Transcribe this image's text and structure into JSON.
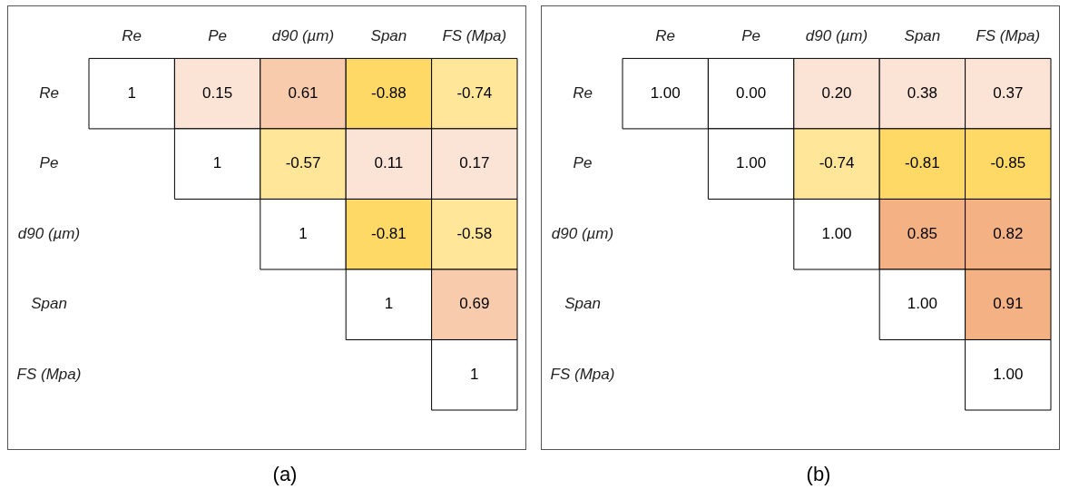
{
  "chart_data": [
    {
      "type": "heatmap",
      "title": "(a)",
      "categories": [
        "Re",
        "Pe",
        "d90 (µm)",
        "Span",
        "FS (Mpa)"
      ],
      "y_categories": [
        "Re",
        "Pe",
        "d90 (µm)",
        "Span",
        "FS (Mpa)"
      ],
      "cells": [
        [
          1,
          0.15,
          0.61,
          -0.88,
          -0.74
        ],
        [
          null,
          1,
          -0.57,
          0.11,
          0.17
        ],
        [
          null,
          null,
          1,
          -0.81,
          -0.58
        ],
        [
          null,
          null,
          null,
          1,
          0.69
        ],
        [
          null,
          null,
          null,
          null,
          1
        ]
      ],
      "cell_labels": [
        [
          "1",
          "0.15",
          "0.61",
          "-0.88",
          "-0.74"
        ],
        [
          null,
          "1",
          "-0.57",
          "0.11",
          "0.17"
        ],
        [
          null,
          null,
          "1",
          "-0.81",
          "-0.58"
        ],
        [
          null,
          null,
          null,
          "1",
          "0.69"
        ],
        [
          null,
          null,
          null,
          null,
          "1"
        ]
      ],
      "legend": false,
      "grid": false
    },
    {
      "type": "heatmap",
      "title": "(b)",
      "categories": [
        "Re",
        "Pe",
        "d90 (µm)",
        "Span",
        "FS (Mpa)"
      ],
      "y_categories": [
        "Re",
        "Pe",
        "d90 (µm)",
        "Span",
        "FS (Mpa)"
      ],
      "cells": [
        [
          1,
          0,
          0.2,
          0.38,
          0.37
        ],
        [
          null,
          1,
          -0.74,
          -0.81,
          -0.85
        ],
        [
          null,
          null,
          1,
          0.85,
          0.82
        ],
        [
          null,
          null,
          null,
          1,
          0.91
        ],
        [
          null,
          null,
          null,
          null,
          1
        ]
      ],
      "cell_labels": [
        [
          "1.00",
          "0.00",
          "0.20",
          "0.38",
          "0.37"
        ],
        [
          null,
          "1.00",
          "-0.74",
          "-0.81",
          "-0.85"
        ],
        [
          null,
          null,
          "1.00",
          "0.85",
          "0.82"
        ],
        [
          null,
          null,
          null,
          "1.00",
          "0.91"
        ],
        [
          null,
          null,
          null,
          null,
          "1.00"
        ]
      ],
      "legend": false,
      "grid": false
    }
  ]
}
